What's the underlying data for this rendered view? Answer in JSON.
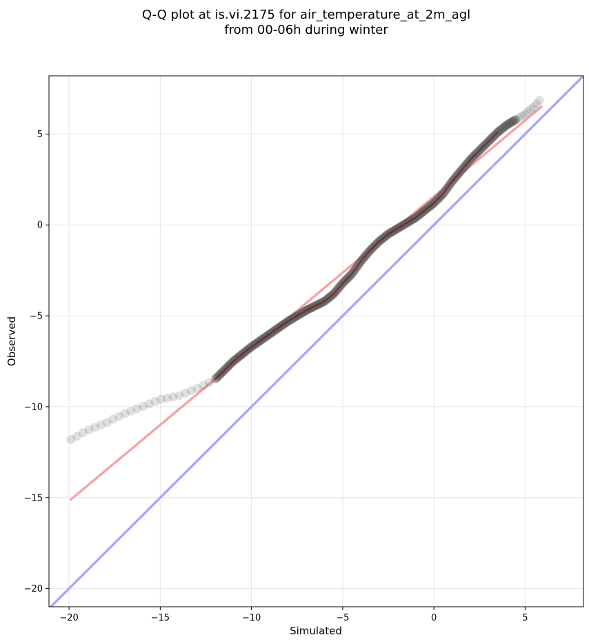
{
  "chart_data": {
    "type": "scatter",
    "title": "Q-Q plot at is.vi.2175 for air_temperature_at_2m_agl",
    "subtitle": "from 00-06h during winter",
    "xlabel": "Simulated",
    "ylabel": "Observed",
    "xlim": [
      -21.1,
      8.2
    ],
    "ylim": [
      -21.0,
      8.2
    ],
    "x_ticks": [
      -20,
      -15,
      -10,
      -5,
      0,
      5
    ],
    "y_ticks": [
      -20,
      -15,
      -10,
      -5,
      0,
      5
    ],
    "x_tick_labels": [
      "−20",
      "−15",
      "−10",
      "−5",
      "0",
      "5"
    ],
    "y_tick_labels": [
      "−20",
      "−15",
      "−10",
      "−5",
      "0",
      "5"
    ],
    "grid": true,
    "colors": {
      "points": "#555555",
      "fit_line": "#f4a6a6",
      "identity_line": "#a8a8f5",
      "center_line": "#8b0000"
    },
    "identity_line": {
      "slope": 1,
      "intercept": 0
    },
    "fit_line": {
      "x": [
        -19.9,
        5.9
      ],
      "y": [
        -15.1,
        6.5
      ]
    },
    "quantile_curve": {
      "x": [
        -19.9,
        -19.0,
        -18.0,
        -17.0,
        -16.0,
        -15.0,
        -14.0,
        -13.0,
        -12.0,
        -11.0,
        -10.0,
        -9.0,
        -8.0,
        -7.0,
        -6.0,
        -5.5,
        -5.0,
        -4.5,
        -4.0,
        -3.5,
        -3.0,
        -2.5,
        -2.0,
        -1.0,
        0.0,
        0.5,
        1.0,
        1.5,
        2.0,
        2.5,
        3.0,
        3.5,
        4.0,
        4.5,
        5.0,
        5.5,
        5.9
      ],
      "y": [
        -11.8,
        -11.3,
        -10.9,
        -10.4,
        -10.0,
        -9.6,
        -9.4,
        -9.0,
        -8.5,
        -7.5,
        -6.7,
        -6.0,
        -5.3,
        -4.7,
        -4.2,
        -3.8,
        -3.2,
        -2.7,
        -2.0,
        -1.4,
        -0.9,
        -0.5,
        -0.2,
        0.4,
        1.2,
        1.7,
        2.4,
        3.0,
        3.6,
        4.1,
        4.6,
        5.1,
        5.5,
        5.8,
        6.1,
        6.5,
        7.0
      ]
    }
  }
}
